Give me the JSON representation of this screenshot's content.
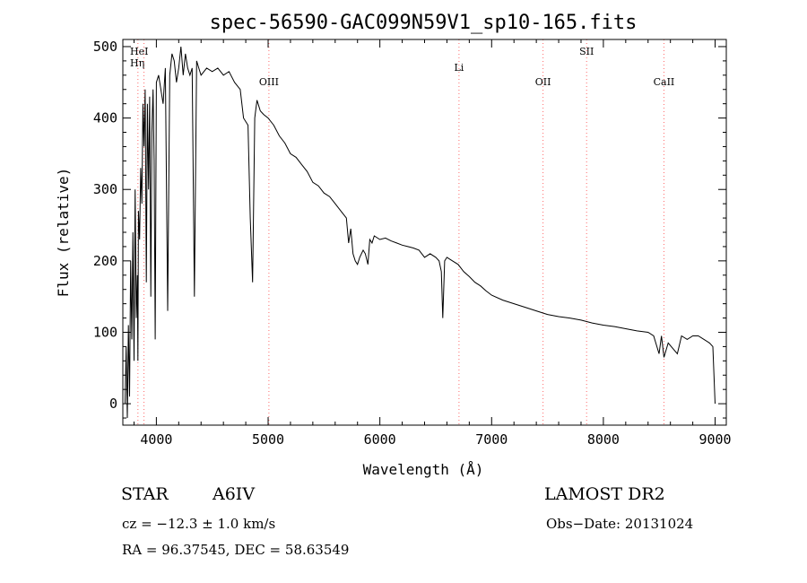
{
  "chart_data": {
    "type": "line",
    "title": "spec-56590-GAC099N59V1_sp10-165.fits",
    "xlabel": "Wavelength (Å)",
    "ylabel": "Flux (relative)",
    "xlim": [
      3700,
      9100
    ],
    "ylim": [
      -30,
      510
    ],
    "xticks": [
      4000,
      5000,
      6000,
      7000,
      8000,
      9000
    ],
    "yticks": [
      0,
      100,
      200,
      300,
      400,
      500
    ],
    "grid": false,
    "line_color": "#000000",
    "marker_color": "#ff6a6a",
    "line_markers": [
      {
        "label": "Hη",
        "wavelength": 3835
      },
      {
        "label": "HeI",
        "wavelength": 3889
      },
      {
        "label": "OIII",
        "wavelength": 5007
      },
      {
        "label": "Li",
        "wavelength": 6708
      },
      {
        "label": "OII",
        "wavelength": 7460
      },
      {
        "label": "SII",
        "wavelength": 7850
      },
      {
        "label": "CaII",
        "wavelength": 8542
      }
    ],
    "series": [
      {
        "x": [
          3720,
          3730,
          3740,
          3750,
          3760,
          3770,
          3780,
          3790,
          3800,
          3810,
          3820,
          3830,
          3835,
          3840,
          3850,
          3860,
          3870,
          3880,
          3889,
          3900,
          3910,
          3920,
          3930,
          3940,
          3950,
          3960,
          3970,
          3980,
          3990,
          4000,
          4020,
          4040,
          4060,
          4080,
          4101,
          4120,
          4140,
          4160,
          4180,
          4200,
          4220,
          4240,
          4260,
          4280,
          4300,
          4320,
          4340,
          4360,
          4380,
          4400,
          4450,
          4500,
          4550,
          4600,
          4650,
          4700,
          4750,
          4780,
          4820,
          4840,
          4861,
          4880,
          4900,
          4930,
          4960,
          5000,
          5050,
          5100,
          5150,
          5200,
          5250,
          5300,
          5350,
          5400,
          5450,
          5500,
          5550,
          5600,
          5650,
          5700,
          5720,
          5740,
          5760,
          5780,
          5800,
          5820,
          5850,
          5870,
          5893,
          5910,
          5930,
          5950,
          6000,
          6050,
          6100,
          6150,
          6200,
          6250,
          6300,
          6350,
          6400,
          6450,
          6500,
          6530,
          6550,
          6563,
          6580,
          6600,
          6650,
          6700,
          6750,
          6800,
          6850,
          6900,
          6950,
          7000,
          7100,
          7200,
          7300,
          7400,
          7500,
          7600,
          7700,
          7800,
          7900,
          8000,
          8100,
          8200,
          8300,
          8400,
          8450,
          8498,
          8520,
          8542,
          8580,
          8662,
          8700,
          8750,
          8800,
          8850,
          8900,
          8950,
          8980,
          9000
        ],
        "y": [
          0,
          80,
          -20,
          110,
          10,
          200,
          90,
          240,
          60,
          300,
          120,
          180,
          60,
          270,
          230,
          330,
          280,
          420,
          360,
          440,
          170,
          420,
          300,
          430,
          150,
          380,
          440,
          340,
          90,
          450,
          460,
          440,
          420,
          470,
          130,
          460,
          490,
          480,
          450,
          470,
          500,
          460,
          490,
          470,
          460,
          470,
          150,
          480,
          470,
          460,
          470,
          465,
          470,
          460,
          465,
          450,
          440,
          400,
          390,
          260,
          170,
          400,
          425,
          410,
          405,
          400,
          390,
          375,
          365,
          350,
          345,
          335,
          325,
          310,
          305,
          295,
          290,
          280,
          270,
          260,
          225,
          245,
          210,
          200,
          195,
          205,
          215,
          210,
          195,
          230,
          225,
          235,
          230,
          232,
          228,
          225,
          222,
          220,
          218,
          215,
          205,
          210,
          205,
          200,
          185,
          120,
          200,
          205,
          200,
          195,
          185,
          178,
          170,
          165,
          158,
          152,
          145,
          140,
          135,
          130,
          125,
          122,
          120,
          117,
          113,
          110,
          108,
          105,
          102,
          100,
          95,
          70,
          95,
          65,
          85,
          70,
          95,
          90,
          95,
          95,
          90,
          85,
          80,
          0
        ]
      }
    ],
    "info": {
      "obj_class": "STAR",
      "obj_subclass": "A6IV",
      "survey": "LAMOST DR2",
      "cz": "cz = −12.3 ± 1.0 km/s",
      "obs_date": "Obs−Date: 20131024",
      "radec": "RA =  96.37545, DEC =  58.63549"
    }
  }
}
